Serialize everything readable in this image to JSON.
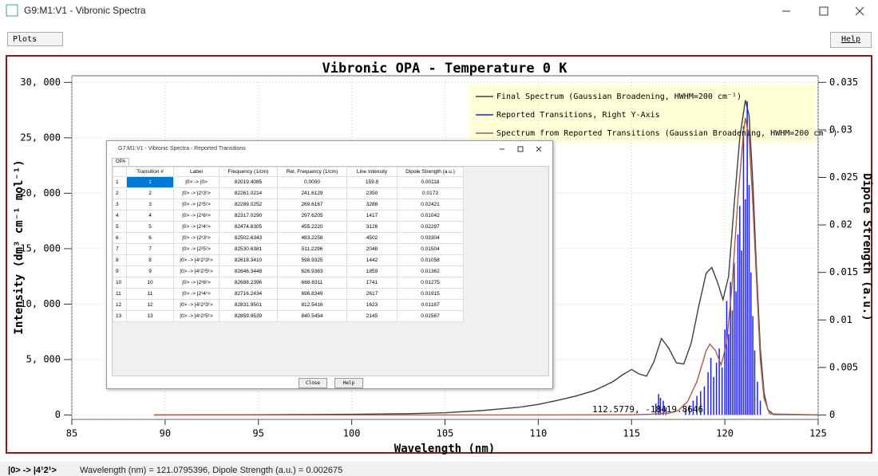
{
  "window": {
    "title": "G9:M1:V1 - Vibronic Spectra",
    "menu": "Plots",
    "help": "Help"
  },
  "chart_data": {
    "type": "line",
    "title": "Vibronic OPA - Temperature 0 K",
    "xlabel": "Wavelength (nm)",
    "ylabel": "Intensity (dm³ cm⁻¹ mol⁻¹)",
    "y2label": "Dipole Strength (a.u.)",
    "xlim": [
      85,
      125
    ],
    "xticks": [
      85,
      90,
      95,
      100,
      105,
      110,
      115,
      120,
      125
    ],
    "ylim": [
      -400,
      30600
    ],
    "yticks": [
      0,
      {
        "value": 5000,
        "label": "5, 000"
      },
      {
        "value": 10000,
        "label": "10, 000"
      },
      {
        "value": 15000,
        "label": "15, 000"
      },
      {
        "value": 20000,
        "label": "20, 000"
      },
      {
        "value": 25000,
        "label": "25, 000"
      },
      {
        "value": 30000,
        "label": "30, 000"
      }
    ],
    "y2lim": [
      -0.000467,
      0.0357
    ],
    "y2ticks": [
      0,
      0.005,
      0.01,
      0.015,
      0.02,
      0.025,
      0.03,
      0.035
    ],
    "grid": true,
    "legend": "upper right",
    "series": [
      {
        "name": "Final Spectrum (Gaussian Broadening, HWHM=200 cm⁻¹)",
        "type": "line",
        "color": "#404040",
        "x": [
          89.4,
          95,
          100,
          103,
          105,
          107,
          109,
          110,
          111,
          112,
          113,
          114,
          114.5,
          115,
          115.4,
          115.8,
          116.2,
          116.6,
          117,
          117.4,
          117.8,
          118.2,
          118.6,
          119,
          119.3,
          119.6,
          119.9,
          120.2,
          120.5,
          120.8,
          121.1,
          121.3,
          121.5,
          121.7,
          121.9,
          122.1,
          122.3,
          122.6,
          125
        ],
        "values": [
          0,
          20,
          60,
          120,
          200,
          400,
          700,
          950,
          1300,
          1700,
          2200,
          3000,
          3600,
          4100,
          3700,
          3500,
          4800,
          6900,
          6000,
          4700,
          4600,
          6500,
          9800,
          12800,
          13300,
          12000,
          10400,
          12500,
          19000,
          25000,
          28400,
          27000,
          21000,
          13000,
          6000,
          2000,
          500,
          50,
          0
        ]
      },
      {
        "name": "Reported Transitions, Right Y-Axis",
        "type": "stem",
        "axis": "y2",
        "color": "#1c1cff",
        "x": [
          116.3,
          116.45,
          116.55,
          116.7,
          116.85,
          117.9,
          118.1,
          118.3,
          118.5,
          118.7,
          118.9,
          119.1,
          119.25,
          119.4,
          119.55,
          119.7,
          119.85,
          120.0,
          120.1,
          120.2,
          120.3,
          120.4,
          120.5,
          120.6,
          120.7,
          120.8,
          120.9,
          121.0,
          121.1,
          121.2,
          121.3,
          121.4,
          121.5,
          121.6,
          121.75,
          121.9
        ],
        "values": [
          0.0012,
          0.0022,
          0.0018,
          0.0015,
          0.0008,
          0.0006,
          0.001,
          0.0015,
          0.002,
          0.0025,
          0.003,
          0.0045,
          0.006,
          0.004,
          0.0055,
          0.007,
          0.005,
          0.009,
          0.012,
          0.0085,
          0.014,
          0.011,
          0.016,
          0.013,
          0.019,
          0.022,
          0.0173,
          0.0304,
          0.0227,
          0.033,
          0.0242,
          0.015,
          0.0104,
          0.0068,
          0.0035,
          0.0015
        ]
      },
      {
        "name": "Spectrum from Reported Transitions (Gaussian Broadening, HWHM=200 cm⁻¹)",
        "type": "line",
        "color": "#b05a4a",
        "x": [
          89.4,
          110,
          115,
          116,
          117,
          117.5,
          118,
          118.5,
          119,
          119.2,
          119.5,
          119.8,
          120.1,
          120.4,
          120.7,
          121,
          121.1,
          121.3,
          121.5,
          121.7,
          121.9,
          122.1,
          122.4,
          125
        ],
        "values": [
          0,
          0,
          20,
          60,
          150,
          400,
          1200,
          3000,
          5800,
          6400,
          5800,
          4500,
          6500,
          12000,
          19500,
          25500,
          26800,
          25000,
          19000,
          12000,
          5000,
          1500,
          100,
          0
        ]
      }
    ],
    "annotation": "112.5779, -18419.8646"
  },
  "dialog": {
    "title": "G7:M1:V1 - Vibronic Spectra - Reported Transitions",
    "tab": "OPA",
    "columns": [
      "Transition #",
      "Label",
      "Frequency (1/cm)",
      "Rel. Frequency (1/cm)",
      "Line Intensity",
      "Dipole Strength (a.u.)"
    ],
    "rows": [
      [
        "1",
        "1",
        "|0> -> |0>",
        "82019.4085",
        "0.0000",
        "159.8",
        "0.00118"
      ],
      [
        "2",
        "2",
        "|0> -> |2¹3¹>",
        "82261.0214",
        "241.6129",
        "2350",
        "0.0173"
      ],
      [
        "3",
        "3",
        "|0> -> |2¹5¹>",
        "82289.0252",
        "269.6167",
        "3288",
        "0.02421"
      ],
      [
        "4",
        "4",
        "|0> -> |2¹6¹>",
        "82317.0290",
        "297.6205",
        "1417",
        "0.01042"
      ],
      [
        "5",
        "5",
        "|0> -> |2¹4¹>",
        "82474.6305",
        "455.2220",
        "3126",
        "0.02297"
      ],
      [
        "6",
        "6",
        "|0> -> |2²3¹>",
        "82502.6343",
        "483.2258",
        "4502",
        "0.03304"
      ],
      [
        "7",
        "7",
        "|0> -> |2²5¹>",
        "82530.6381",
        "511.2296",
        "2048",
        "0.01504"
      ],
      [
        "8",
        "8",
        "|0> -> |4¹2¹3¹>",
        "82618.3410",
        "598.9325",
        "1442",
        "0.01058"
      ],
      [
        "9",
        "9",
        "|0> -> |4¹2¹5¹>",
        "82646.3448",
        "626.9363",
        "1859",
        "0.01362"
      ],
      [
        "10",
        "10",
        "|0> -> |2²6¹>",
        "82688.2396",
        "668.8311",
        "1741",
        "0.01275"
      ],
      [
        "11",
        "11",
        "|0> -> |2²4¹>",
        "82716.2434",
        "696.8349",
        "2617",
        "0.01915"
      ],
      [
        "12",
        "12",
        "|0> -> |4¹2²3¹>",
        "82831.9501",
        "812.5416",
        "1623",
        "0.01187"
      ],
      [
        "13",
        "13",
        "|0> -> |4¹2²5¹>",
        "82859.9539",
        "840.5454",
        "2145",
        "0.01567"
      ]
    ],
    "buttons": [
      "Close",
      "Help"
    ]
  },
  "status": {
    "label": "|0> -> |4¹2¹>",
    "text": "Wavelength (nm) = 121.0795396, Dipole Strength (a.u.) = 0.002675"
  }
}
